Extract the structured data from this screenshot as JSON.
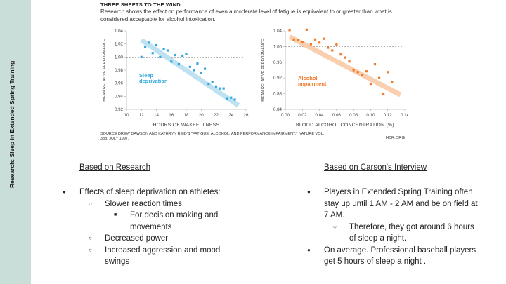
{
  "sidebar": {
    "title": "Research: Sleep in Extended Spring Training"
  },
  "figure": {
    "title": "THREE SHEETS TO THE WIND",
    "subtitle": "Research shows the effect on performance of even a moderate level of fatigue is equivalent to or greater than what is considered acceptable for alcohol intoxication.",
    "source": "SOURCE DREW DAWSON AND KATHRYN REID'S \"FATIGUE, ALCOHOL, AND PERFORMANCE IMPAIRMENT,\" NATURE VOL. 388, JULY 1997.",
    "credit": "HBR.ORG"
  },
  "chart_data": [
    {
      "type": "scatter",
      "xlabel": "HOURS OF WAKEFULNESS",
      "ylabel": "MEAN RELATIVE PERFORMANCE",
      "xlim": [
        10,
        26
      ],
      "ylim": [
        0.92,
        1.04
      ],
      "xticks": [
        "10",
        "12",
        "14",
        "16",
        "18",
        "20",
        "22",
        "24",
        "26"
      ],
      "yticks": [
        "0.92",
        "0.94",
        "0.96",
        "0.98",
        "1.00",
        "1.02",
        "1.04"
      ],
      "reference_line": 1.0,
      "annotation": [
        "Sleep",
        "deprivation"
      ],
      "color": "#35a9dc",
      "trend_color": "#b5def2",
      "x": [
        12.0,
        12.5,
        13.0,
        13.5,
        14.0,
        14.5,
        15.0,
        15.5,
        16.0,
        16.5,
        17.0,
        17.5,
        18.0,
        18.5,
        19.0,
        19.5,
        20.0,
        20.5,
        21.0,
        21.5,
        22.0,
        22.5,
        23.0,
        23.5,
        24.0,
        24.5
      ],
      "y": [
        1.0,
        1.015,
        1.022,
        1.006,
        1.018,
        1.0,
        1.012,
        1.01,
        0.993,
        1.003,
        0.989,
        1.002,
        1.005,
        0.985,
        0.98,
        0.99,
        0.976,
        0.982,
        0.959,
        0.962,
        0.955,
        0.952,
        0.952,
        0.936,
        0.938,
        0.935
      ],
      "trend": {
        "x": [
          12.0,
          25.0
        ],
        "y": [
          1.026,
          0.926
        ]
      }
    },
    {
      "type": "scatter",
      "xlabel": "BLOOD ALCOHOL CONCENTRATION (%)",
      "ylabel": "MEAN RELATIVE PERFORMANCE",
      "xlim": [
        0.0,
        0.14
      ],
      "ylim": [
        0.84,
        1.04
      ],
      "xticks": [
        "0.00",
        "0.02",
        "0.04",
        "0.06",
        "0.08",
        "0.10",
        "0.12",
        "0.14"
      ],
      "yticks": [
        "0.84",
        "0.88",
        "0.92",
        "0.96",
        "1.00",
        "1.04"
      ],
      "reference_line": 1.0,
      "annotation": [
        "Alcohol",
        "impairment"
      ],
      "color": "#f07a2a",
      "trend_color": "#f8c7a2",
      "x": [
        0.005,
        0.01,
        0.015,
        0.02,
        0.025,
        0.03,
        0.035,
        0.04,
        0.045,
        0.05,
        0.055,
        0.06,
        0.065,
        0.07,
        0.075,
        0.08,
        0.085,
        0.09,
        0.095,
        0.1,
        0.105,
        0.11,
        0.115,
        0.12,
        0.125
      ],
      "y": [
        1.042,
        1.018,
        1.016,
        1.012,
        1.043,
        1.006,
        1.018,
        1.01,
        1.02,
        0.997,
        0.99,
        1.005,
        0.98,
        0.972,
        0.962,
        0.94,
        0.935,
        0.928,
        0.937,
        0.905,
        0.955,
        0.92,
        0.88,
        0.935,
        0.91
      ],
      "trend": {
        "x": [
          0.005,
          0.135
        ],
        "y": [
          1.025,
          0.877
        ]
      }
    }
  ],
  "columns": {
    "left": {
      "heading": "Based on Research",
      "items": [
        {
          "level": 1,
          "text": "Effects of sleep deprivation on athletes:"
        },
        {
          "level": 2,
          "text": "Slower reaction times"
        },
        {
          "level": 3,
          "text": "For decision making and movements"
        },
        {
          "level": 2,
          "text": "Decreased power"
        },
        {
          "level": 2,
          "text": "Increased aggression and mood swings"
        }
      ]
    },
    "right": {
      "heading": "Based on Carson's Interview",
      "items": [
        {
          "level": 1,
          "text": "Players in Extended Spring Training often stay up until 1 AM - 2 AM and be on field at 7 AM."
        },
        {
          "level": 2,
          "text": "Therefore, they got around 6 hours of sleep a night."
        },
        {
          "level": 1,
          "text": "On average. Professional baseball players get 5 hours of sleep a night ."
        }
      ]
    }
  }
}
